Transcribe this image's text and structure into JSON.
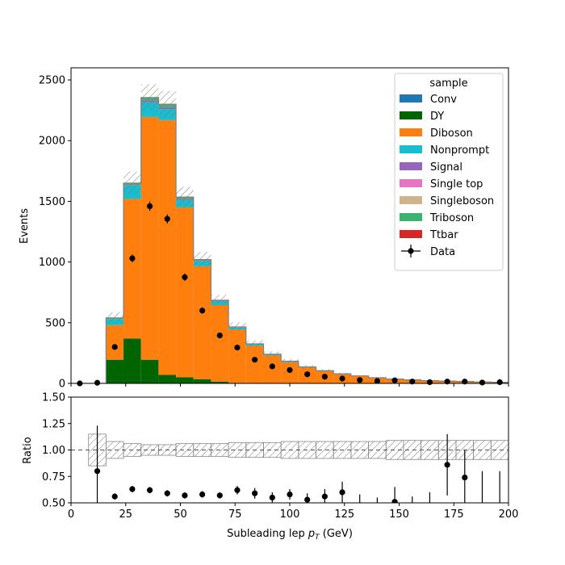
{
  "chart_data": [
    {
      "type": "bar",
      "subtype": "stacked-histogram",
      "ylabel": "Events",
      "xlabel": "",
      "xlim": [
        0,
        200
      ],
      "ylim": [
        0,
        2600
      ],
      "bin_edges": [
        0,
        8,
        16,
        24,
        32,
        40,
        48,
        56,
        64,
        72,
        80,
        88,
        96,
        104,
        112,
        120,
        128,
        136,
        144,
        152,
        160,
        168,
        176,
        184,
        192,
        200
      ],
      "y_ticks": [
        "0",
        "500",
        "1000",
        "1500",
        "2000",
        "2500"
      ],
      "x_ticks": [
        "0",
        "25",
        "50",
        "75",
        "100",
        "125",
        "150",
        "175",
        "200"
      ],
      "legend": {
        "title": "sample",
        "placement": "top-right"
      },
      "series": [
        {
          "name": "Conv",
          "color": "#1f77b4",
          "values": [
            0,
            0,
            0,
            0,
            0,
            0,
            0,
            0,
            0,
            0,
            0,
            0,
            0,
            0,
            0,
            0,
            0,
            0,
            0,
            0,
            0,
            0,
            0,
            0,
            0
          ]
        },
        {
          "name": "DY",
          "color": "#006400",
          "values": [
            0,
            0,
            195,
            370,
            195,
            70,
            50,
            35,
            15,
            5,
            0,
            0,
            0,
            0,
            0,
            0,
            0,
            0,
            0,
            0,
            0,
            0,
            0,
            0,
            0
          ]
        },
        {
          "name": "Diboson",
          "color": "#ff7f0e",
          "values": [
            0,
            0,
            285,
            1150,
            2000,
            2100,
            1400,
            930,
            630,
            440,
            310,
            230,
            175,
            130,
            100,
            75,
            60,
            45,
            35,
            28,
            22,
            18,
            15,
            12,
            9
          ]
        },
        {
          "name": "Nonprompt",
          "color": "#17becf",
          "values": [
            0,
            0,
            50,
            110,
            120,
            90,
            60,
            40,
            30,
            15,
            12,
            8,
            6,
            5,
            4,
            3,
            2,
            2,
            1,
            1,
            1,
            1,
            1,
            0,
            0
          ]
        },
        {
          "name": "Signal",
          "color": "#9467bd",
          "values": [
            0,
            0,
            0,
            5,
            15,
            15,
            10,
            5,
            3,
            2,
            1,
            0,
            0,
            0,
            0,
            0,
            0,
            0,
            0,
            0,
            0,
            0,
            0,
            0,
            0
          ]
        },
        {
          "name": "Single top",
          "color": "#e377c2",
          "values": [
            0,
            0,
            0,
            0,
            0,
            0,
            0,
            0,
            0,
            0,
            0,
            0,
            0,
            0,
            0,
            0,
            0,
            0,
            0,
            0,
            0,
            0,
            0,
            0,
            0
          ]
        },
        {
          "name": "Singleboson",
          "color": "#d2b48c",
          "values": [
            0,
            0,
            0,
            0,
            0,
            0,
            0,
            0,
            0,
            0,
            0,
            0,
            0,
            0,
            0,
            0,
            0,
            0,
            0,
            0,
            0,
            0,
            0,
            0,
            0
          ]
        },
        {
          "name": "Triboson",
          "color": "#3cb371",
          "values": [
            0,
            0,
            10,
            15,
            25,
            25,
            15,
            10,
            7,
            4,
            3,
            2,
            2,
            1,
            1,
            1,
            0,
            0,
            0,
            0,
            0,
            0,
            0,
            0,
            0
          ]
        },
        {
          "name": "Ttbar",
          "color": "#d62728",
          "values": [
            0,
            0,
            0,
            0,
            0,
            0,
            0,
            0,
            0,
            0,
            0,
            0,
            0,
            0,
            0,
            0,
            0,
            0,
            0,
            0,
            0,
            0,
            0,
            0,
            0
          ]
        }
      ],
      "mc_uncertainty": [
        0,
        0,
        45,
        95,
        110,
        110,
        85,
        65,
        45,
        38,
        28,
        22,
        17,
        14,
        11,
        9,
        7,
        6,
        5,
        4,
        4,
        3,
        3,
        2,
        2
      ],
      "data": {
        "name": "Data",
        "x": [
          4,
          12,
          20,
          28,
          36,
          44,
          52,
          60,
          68,
          76,
          84,
          92,
          100,
          108,
          116,
          124,
          132,
          140,
          148,
          156,
          164,
          172,
          180,
          188,
          196
        ],
        "y": [
          0,
          5,
          300,
          1030,
          1460,
          1355,
          875,
          600,
          395,
          295,
          195,
          140,
          110,
          75,
          55,
          40,
          28,
          20,
          25,
          15,
          10,
          15,
          15,
          7,
          10
        ],
        "yerr": [
          0,
          2,
          17,
          32,
          38,
          37,
          30,
          24,
          20,
          17,
          14,
          12,
          10,
          9,
          7,
          6,
          5,
          4,
          5,
          4,
          3,
          4,
          4,
          3,
          3
        ]
      }
    },
    {
      "type": "scatter",
      "ylabel": "Ratio",
      "xlabel": "Subleading lep p_T (GeV)",
      "xlim": [
        0,
        200
      ],
      "ylim": [
        0.5,
        1.5
      ],
      "x_ticks": [
        "0",
        "25",
        "50",
        "75",
        "100",
        "125",
        "150",
        "175",
        "200"
      ],
      "y_ticks": [
        "0.50",
        "0.75",
        "1.00",
        "1.25",
        "1.50"
      ],
      "reference_line": 1.0,
      "mc_band_rel": [
        0,
        0.15,
        0.08,
        0.06,
        0.05,
        0.05,
        0.06,
        0.06,
        0.06,
        0.07,
        0.07,
        0.07,
        0.08,
        0.08,
        0.08,
        0.08,
        0.08,
        0.08,
        0.09,
        0.09,
        0.09,
        0.09,
        0.09,
        0.09,
        0.09
      ],
      "ratio": {
        "x": [
          12,
          20,
          28,
          36,
          44,
          52,
          60,
          68,
          76,
          84,
          92,
          100,
          108,
          116,
          124,
          132,
          140,
          148,
          156,
          164,
          172,
          180,
          188,
          196
        ],
        "y": [
          0.8,
          0.56,
          0.63,
          0.62,
          0.59,
          0.57,
          0.58,
          0.57,
          0.62,
          0.59,
          0.55,
          0.58,
          0.53,
          0.56,
          0.6,
          0.45,
          0.4,
          0.51,
          0.4,
          0.42,
          0.86,
          0.74,
          0.4,
          0.4
        ],
        "yerr": [
          0.43,
          0.03,
          0.03,
          0.03,
          0.03,
          0.03,
          0.03,
          0.03,
          0.04,
          0.05,
          0.05,
          0.05,
          0.06,
          0.07,
          0.1,
          0.13,
          0.15,
          0.14,
          0.16,
          0.18,
          0.29,
          0.26,
          0.4,
          0.4
        ]
      }
    }
  ]
}
